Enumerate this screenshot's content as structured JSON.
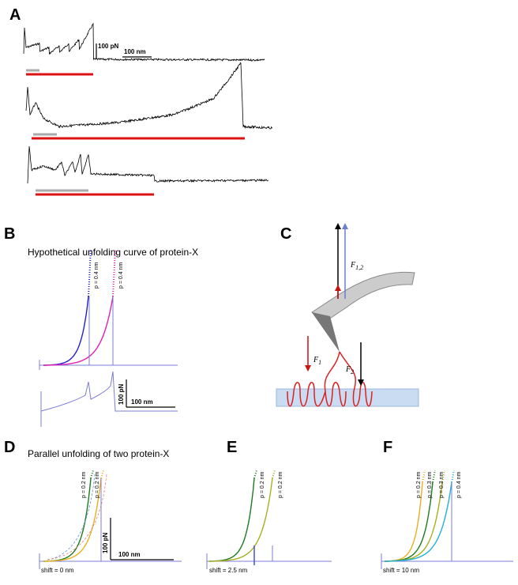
{
  "panels": {
    "A": {
      "letter": "A",
      "scale_force": "100 pN",
      "scale_length": "100 nm"
    },
    "B": {
      "letter": "B",
      "title": "Hypothetical unfolding curve of protein-X",
      "curve_labels": [
        "p = 0.4 nm",
        "p = 0.4 nm"
      ],
      "scale_force": "100 pN",
      "scale_length": "100 nm"
    },
    "C": {
      "letter": "C",
      "forces": [
        {
          "symbol": "F",
          "subscript": "1,2"
        },
        {
          "symbol": "F",
          "subscript": "1"
        },
        {
          "symbol": "F",
          "subscript": "2"
        }
      ]
    },
    "D": {
      "letter": "D",
      "title": "Parallel unfolding of two protein-X",
      "curve_labels": [
        "p = 0.2 nm",
        "p = 0.2 nm"
      ],
      "scale_force": "100 pN",
      "scale_length": "100 nm",
      "shift": "shift = 0 nm"
    },
    "E": {
      "letter": "E",
      "curve_labels": [
        "p = 0.2 nm",
        "p = 0.2 nm"
      ],
      "shift": "shift = 2.5 nm"
    },
    "F": {
      "letter": "F",
      "curve_labels": [
        "p = 0.2 nm",
        "p = 0.3 nm",
        "p = 0.3 nm",
        "p = 0.4 nm"
      ],
      "shift": "shift = 10 nm"
    }
  }
}
